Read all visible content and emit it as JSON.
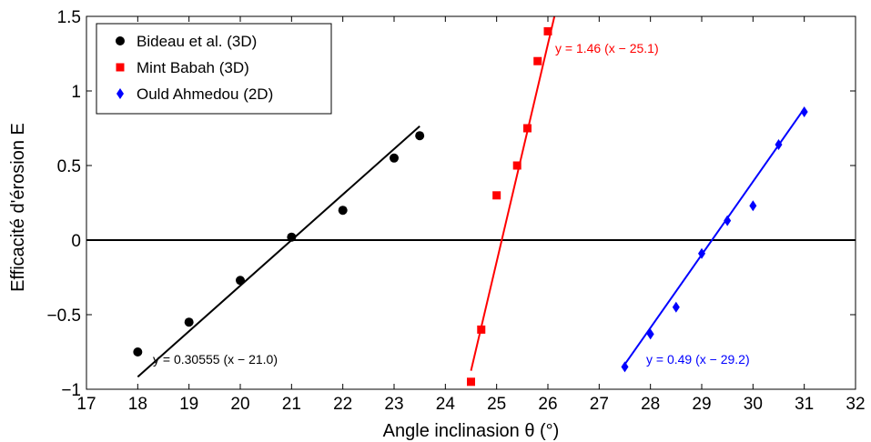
{
  "chart_data": {
    "type": "scatter",
    "xlabel": "Angle inclinasion θ (°)",
    "ylabel": "Efficacité d'érosion E",
    "xlim": [
      17,
      32
    ],
    "ylim": [
      -1,
      1.5
    ],
    "xticks": [
      17,
      18,
      19,
      20,
      21,
      22,
      23,
      24,
      25,
      26,
      27,
      28,
      29,
      30,
      31,
      32
    ],
    "yticks": [
      -1,
      -0.5,
      0,
      0.5,
      1,
      1.5
    ],
    "ytick_labels": [
      "−1",
      "−0.5",
      "0",
      "0.5",
      "1",
      "1.5"
    ],
    "legend_position": "top-left",
    "zero_line": true,
    "series": [
      {
        "name": "Bideau et al. (3D)",
        "color": "#000000",
        "marker": "circle",
        "x": [
          18,
          19,
          20,
          21,
          22,
          23,
          23.5
        ],
        "y": [
          -0.75,
          -0.55,
          -0.27,
          0.02,
          0.2,
          0.55,
          0.7
        ],
        "fit": {
          "slope": 0.30555,
          "x0": 21.0,
          "x_range": [
            18,
            23.5
          ],
          "label": "y = 0.30555 (x − 21.0)"
        }
      },
      {
        "name": "Mint Babah (3D)",
        "color": "#ff0000",
        "marker": "square",
        "x": [
          24.5,
          24.7,
          25,
          25.4,
          25.6,
          25.8,
          26
        ],
        "y": [
          -0.95,
          -0.6,
          0.3,
          0.5,
          0.75,
          1.2,
          1.4
        ],
        "fit": {
          "slope": 1.46,
          "x0": 25.1,
          "x_range": [
            24.5,
            26.13
          ],
          "label": "y = 1.46 (x − 25.1)"
        }
      },
      {
        "name": "Ould Ahmedou (2D)",
        "color": "#0000ff",
        "marker": "diamond",
        "x": [
          27.5,
          28,
          28.5,
          29,
          29.5,
          30,
          30.5,
          31
        ],
        "y": [
          -0.85,
          -0.63,
          -0.45,
          -0.09,
          0.13,
          0.23,
          0.64,
          0.86
        ],
        "fit": {
          "slope": 0.49,
          "x0": 29.2,
          "x_range": [
            27.5,
            31
          ],
          "label": "y = 0.49 (x − 29.2)"
        }
      }
    ]
  }
}
